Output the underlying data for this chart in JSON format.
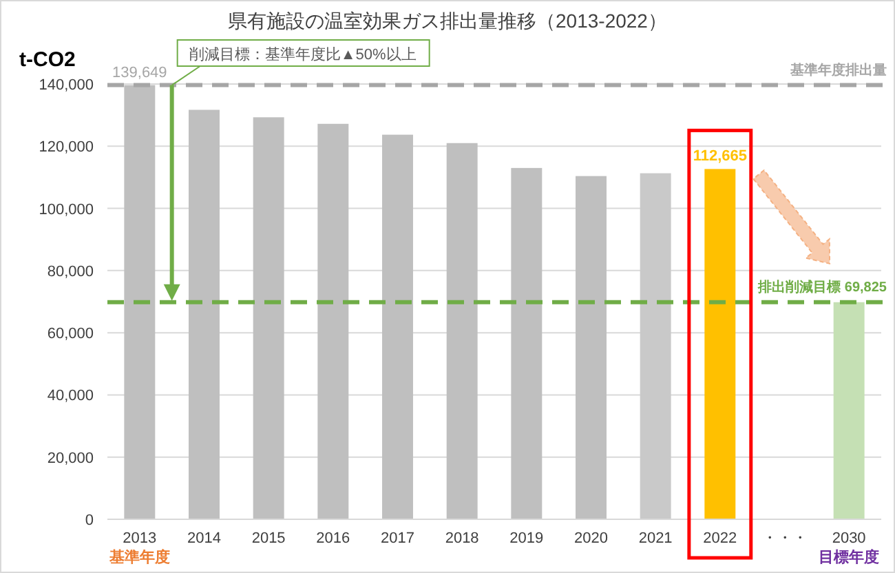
{
  "chart_data": {
    "type": "bar",
    "title": "県有施設の温室効果ガス排出量推移（2013-2022）",
    "ylabel": "t-CO2",
    "categories": [
      "2013",
      "2014",
      "2015",
      "2016",
      "2017",
      "2018",
      "2019",
      "2020",
      "2021",
      "2022",
      "・・・",
      "2030"
    ],
    "values": [
      139649,
      131700,
      129300,
      127200,
      123700,
      121000,
      113000,
      110400,
      111300,
      112665,
      null,
      69825
    ],
    "colors": [
      "#bfbfbf",
      "#bfbfbf",
      "#bfbfbf",
      "#bfbfbf",
      "#bfbfbf",
      "#bfbfbf",
      "#bfbfbf",
      "#bfbfbf",
      "#c9c9c9",
      "#ffc000",
      null,
      "#c5e0b4"
    ],
    "value_labels": [
      "139,649",
      null,
      null,
      null,
      null,
      null,
      null,
      null,
      null,
      "112,665",
      null,
      null
    ],
    "ylim": [
      0,
      140000
    ],
    "yticks": [
      {
        "value": 0,
        "label": "0"
      },
      {
        "value": 20000,
        "label": "20,000"
      },
      {
        "value": 40000,
        "label": "40,000"
      },
      {
        "value": 60000,
        "label": "60,000"
      },
      {
        "value": 80000,
        "label": "80,000"
      },
      {
        "value": 100000,
        "label": "100,000"
      },
      {
        "value": 120000,
        "label": "120,000"
      },
      {
        "value": 140000,
        "label": "140,000"
      }
    ],
    "grid": "y",
    "ref_lines": [
      {
        "axis": "y",
        "value": 139649,
        "label": "基準年度排出量",
        "color": "#a6a6a6",
        "line_style": "dashed"
      },
      {
        "axis": "y",
        "value": 69825,
        "label": "排出削減目標 69,825",
        "color": "#70ad47",
        "line_style": "dashed"
      }
    ],
    "annotations": [
      {
        "text": "削減目標：基準年度比▲50%以上"
      },
      "基準年度",
      "目標年度"
    ]
  }
}
